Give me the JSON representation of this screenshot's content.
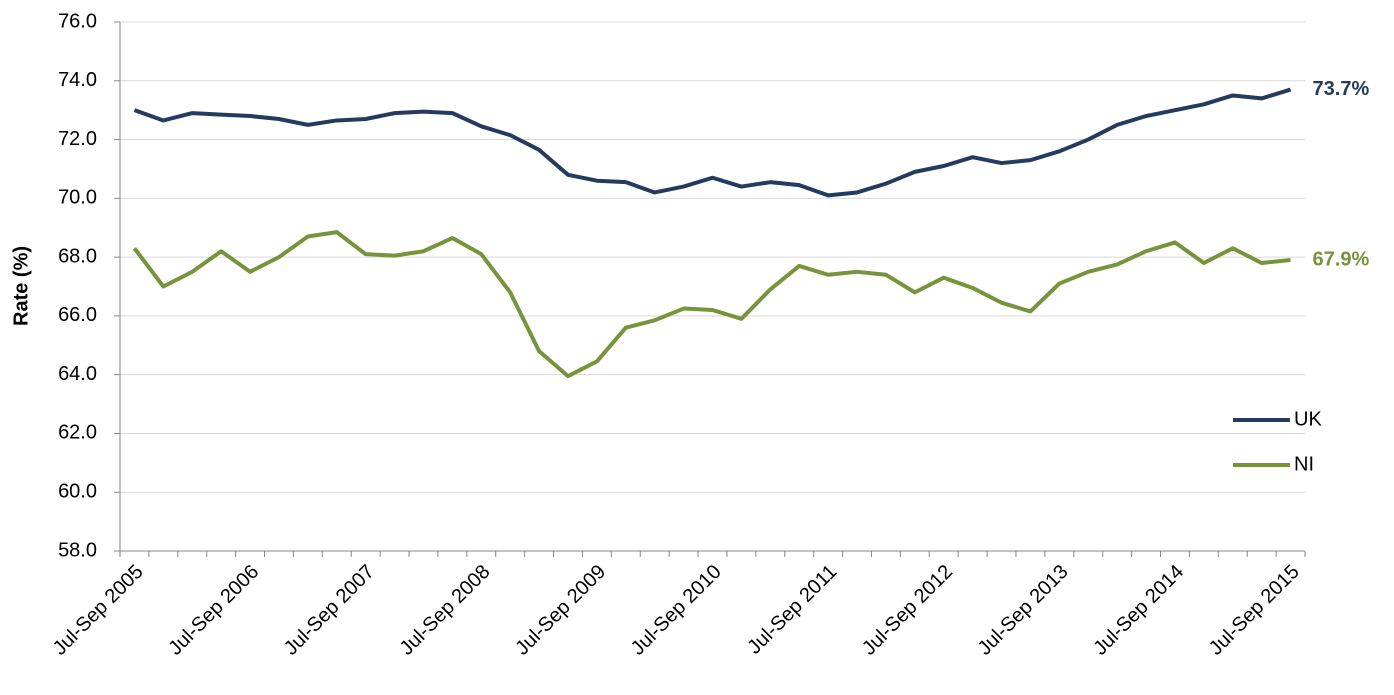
{
  "chart_data": {
    "type": "line",
    "y_label": "Rate (%)",
    "categories": [
      "Jul-Sep 2005",
      null,
      null,
      null,
      "Jul-Sep 2006",
      null,
      null,
      null,
      "Jul-Sep 2007",
      null,
      null,
      null,
      "Jul-Sep 2008",
      null,
      null,
      null,
      "Jul-Sep 2009",
      null,
      null,
      null,
      "Jul-Sep 2010",
      null,
      null,
      null,
      "Jul-Sep 2011",
      null,
      null,
      null,
      "Jul-Sep 2012",
      null,
      null,
      null,
      "Jul-Sep 2013",
      null,
      null,
      null,
      "Jul-Sep 2014",
      null,
      null,
      null,
      "Jul-Sep 2015"
    ],
    "series": [
      {
        "name": "UK",
        "color": "#243a5e",
        "values": [
          73.0,
          72.65,
          72.9,
          72.85,
          72.8,
          72.7,
          72.5,
          72.65,
          72.7,
          72.9,
          72.95,
          72.9,
          72.45,
          72.15,
          71.65,
          70.8,
          70.6,
          70.55,
          70.2,
          70.4,
          70.7,
          70.4,
          70.55,
          70.45,
          70.1,
          70.2,
          70.5,
          70.9,
          71.1,
          71.4,
          71.2,
          71.3,
          71.6,
          72.0,
          72.5,
          72.8,
          73.0,
          73.2,
          73.5,
          73.4,
          73.7
        ],
        "value_labels": [
          null,
          null,
          null,
          null,
          null,
          null,
          null,
          null,
          null,
          null,
          null,
          null,
          null,
          null,
          null,
          null,
          null,
          null,
          null,
          null,
          null,
          null,
          null,
          null,
          null,
          null,
          null,
          null,
          null,
          null,
          null,
          null,
          null,
          null,
          null,
          null,
          null,
          null,
          null,
          null,
          "73.7%"
        ]
      },
      {
        "name": "NI",
        "color": "#77933c",
        "values": [
          68.3,
          67.0,
          67.5,
          68.2,
          67.5,
          68.0,
          68.7,
          68.85,
          68.1,
          68.05,
          68.2,
          68.65,
          68.1,
          66.8,
          64.8,
          63.95,
          64.45,
          65.6,
          65.85,
          66.25,
          66.2,
          65.9,
          66.9,
          67.7,
          67.4,
          67.5,
          67.4,
          66.8,
          67.3,
          66.95,
          66.45,
          66.15,
          67.1,
          67.5,
          67.75,
          68.2,
          68.5,
          67.8,
          68.3,
          67.8,
          67.9
        ],
        "value_labels": [
          null,
          null,
          null,
          null,
          null,
          null,
          null,
          null,
          null,
          null,
          null,
          null,
          null,
          null,
          null,
          null,
          null,
          null,
          null,
          null,
          null,
          null,
          null,
          null,
          null,
          null,
          null,
          null,
          null,
          null,
          null,
          null,
          null,
          null,
          null,
          null,
          null,
          null,
          null,
          null,
          "67.9%"
        ]
      }
    ],
    "ylim": [
      58,
      76
    ],
    "yticks": [
      {
        "value": 58,
        "label": "58.0"
      },
      {
        "value": 60,
        "label": "60.0"
      },
      {
        "value": 62,
        "label": "62.0"
      },
      {
        "value": 64,
        "label": "64.0"
      },
      {
        "value": 66,
        "label": "66.0"
      },
      {
        "value": 68,
        "label": "68.0"
      },
      {
        "value": 70,
        "label": "70.0"
      },
      {
        "value": 72,
        "label": "72.0"
      },
      {
        "value": 74,
        "label": "74.0"
      },
      {
        "value": 76,
        "label": "76.0"
      }
    ],
    "grid": true,
    "legend": "right"
  }
}
